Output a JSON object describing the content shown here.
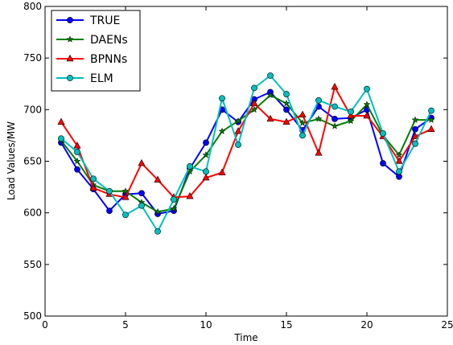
{
  "chart_data": {
    "type": "line",
    "xlabel": "Time",
    "ylabel": "Load Values/MW",
    "xlim": [
      0,
      25
    ],
    "ylim": [
      500,
      800
    ],
    "xticks": [
      0,
      5,
      10,
      15,
      20,
      25
    ],
    "yticks": [
      500,
      550,
      600,
      650,
      700,
      750,
      800
    ],
    "x": [
      1,
      2,
      3,
      4,
      5,
      6,
      7,
      8,
      9,
      10,
      11,
      12,
      13,
      14,
      15,
      16,
      17,
      18,
      19,
      20,
      21,
      22,
      23,
      24
    ],
    "legend_position": "top-left",
    "grid": false,
    "series": [
      {
        "name": "TRUE",
        "color": "#0000ff",
        "marker": "circle",
        "values": [
          668,
          642,
          623,
          602,
          618,
          619,
          599,
          602,
          643,
          668,
          700,
          688,
          710,
          717,
          700,
          680,
          703,
          691,
          692,
          700,
          648,
          635,
          681,
          692
        ]
      },
      {
        "name": "DAENs",
        "color": "#007f00",
        "marker": "star",
        "values": [
          670,
          650,
          627,
          621,
          621,
          610,
          601,
          604,
          640,
          656,
          679,
          689,
          700,
          714,
          706,
          687,
          691,
          684,
          689,
          705,
          675,
          656,
          690,
          690
        ]
      },
      {
        "name": "BPNNs",
        "color": "#ff0000",
        "marker": "triangle",
        "values": [
          688,
          665,
          624,
          618,
          615,
          648,
          632,
          615,
          616,
          634,
          639,
          679,
          706,
          691,
          688,
          695,
          658,
          722,
          694,
          694,
          674,
          650,
          674,
          681
        ]
      },
      {
        "name": "ELM",
        "color": "#00bfbf",
        "marker": "circle",
        "values": [
          672,
          659,
          633,
          621,
          598,
          607,
          582,
          613,
          645,
          640,
          711,
          666,
          721,
          733,
          715,
          675,
          709,
          703,
          698,
          720,
          677,
          640,
          667,
          699
        ]
      }
    ]
  }
}
